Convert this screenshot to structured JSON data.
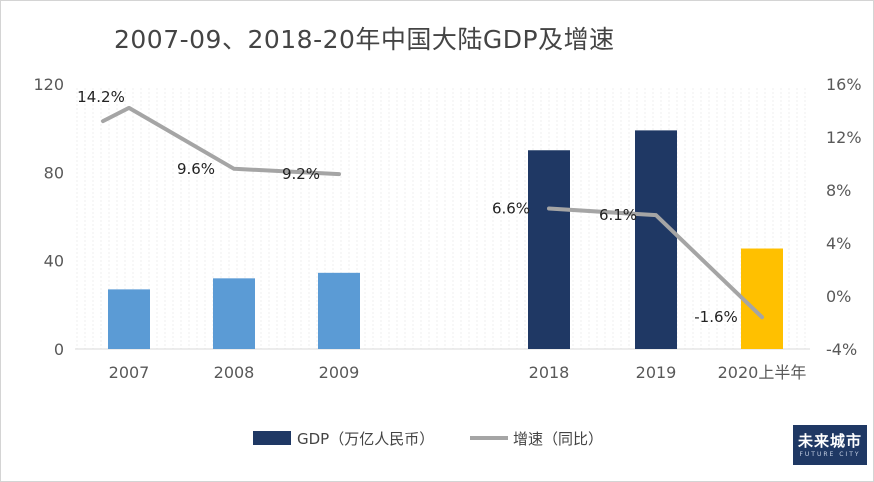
{
  "chart_data": {
    "type": "bar+line",
    "title": "2007-09、2018-20年中国大陆GDP及增速",
    "categories": [
      "2007",
      "2008",
      "2009",
      "2018",
      "2019",
      "2020上半年"
    ],
    "series": [
      {
        "name": "GDP（万亿人民币）",
        "kind": "bar",
        "axis": "left",
        "values": [
          27,
          32,
          34.5,
          90,
          99,
          45.5
        ],
        "colors": [
          "#5b9bd5",
          "#5b9bd5",
          "#5b9bd5",
          "#1f3864",
          "#1f3864",
          "#ffc000"
        ]
      },
      {
        "name": "增速（同比）",
        "kind": "line",
        "axis": "right",
        "values": [
          14.2,
          9.6,
          9.2,
          6.6,
          6.1,
          -1.6
        ],
        "labels": [
          "14.2%",
          "9.6%",
          "9.2%",
          "6.6%",
          "6.1%",
          "-1.6%"
        ],
        "color": "#a5a5a5"
      }
    ],
    "y_left": {
      "min": 0,
      "max": 120,
      "ticks": [
        "0",
        "40",
        "80",
        "120"
      ]
    },
    "y_right": {
      "min": -4,
      "max": 16,
      "ticks": [
        "-4%",
        "0%",
        "4%",
        "8%",
        "12%",
        "16%"
      ]
    },
    "legend_position": "bottom",
    "gridlines": "vertical-dotted-background"
  },
  "legend": {
    "bar_label": "GDP（万亿人民币）",
    "line_label": "增速（同比）"
  },
  "logo": {
    "text": "未来城市",
    "sub": "FUTURE CITY"
  }
}
